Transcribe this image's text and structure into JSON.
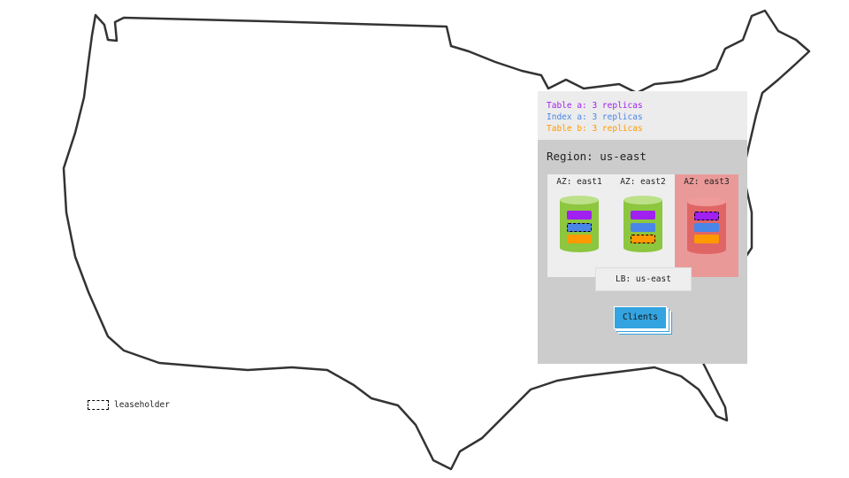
{
  "legend": {
    "items": [
      {
        "label": "Table a: 3 replicas",
        "color": "#a020f0"
      },
      {
        "label": "Index a: 3 replicas",
        "color": "#4a86e8"
      },
      {
        "label": "Table b: 3 replicas",
        "color": "#ff9900"
      }
    ]
  },
  "region": {
    "title": "Region: us-east",
    "zones": [
      {
        "label": "AZ: east1",
        "status": "healthy",
        "leaseholder": "Index a"
      },
      {
        "label": "AZ: east2",
        "status": "healthy",
        "leaseholder": "Table b"
      },
      {
        "label": "AZ: east3",
        "status": "failed",
        "leaseholder": "Table a"
      }
    ],
    "load_balancer": "LB: us-east",
    "clients": "Clients"
  },
  "key": {
    "leaseholder_label": "leaseholder"
  },
  "colors": {
    "healthy_node": "#8dc63f",
    "failed_node": "#e06666",
    "failed_zone": "#ea9999",
    "clients": "#33a4e0"
  }
}
